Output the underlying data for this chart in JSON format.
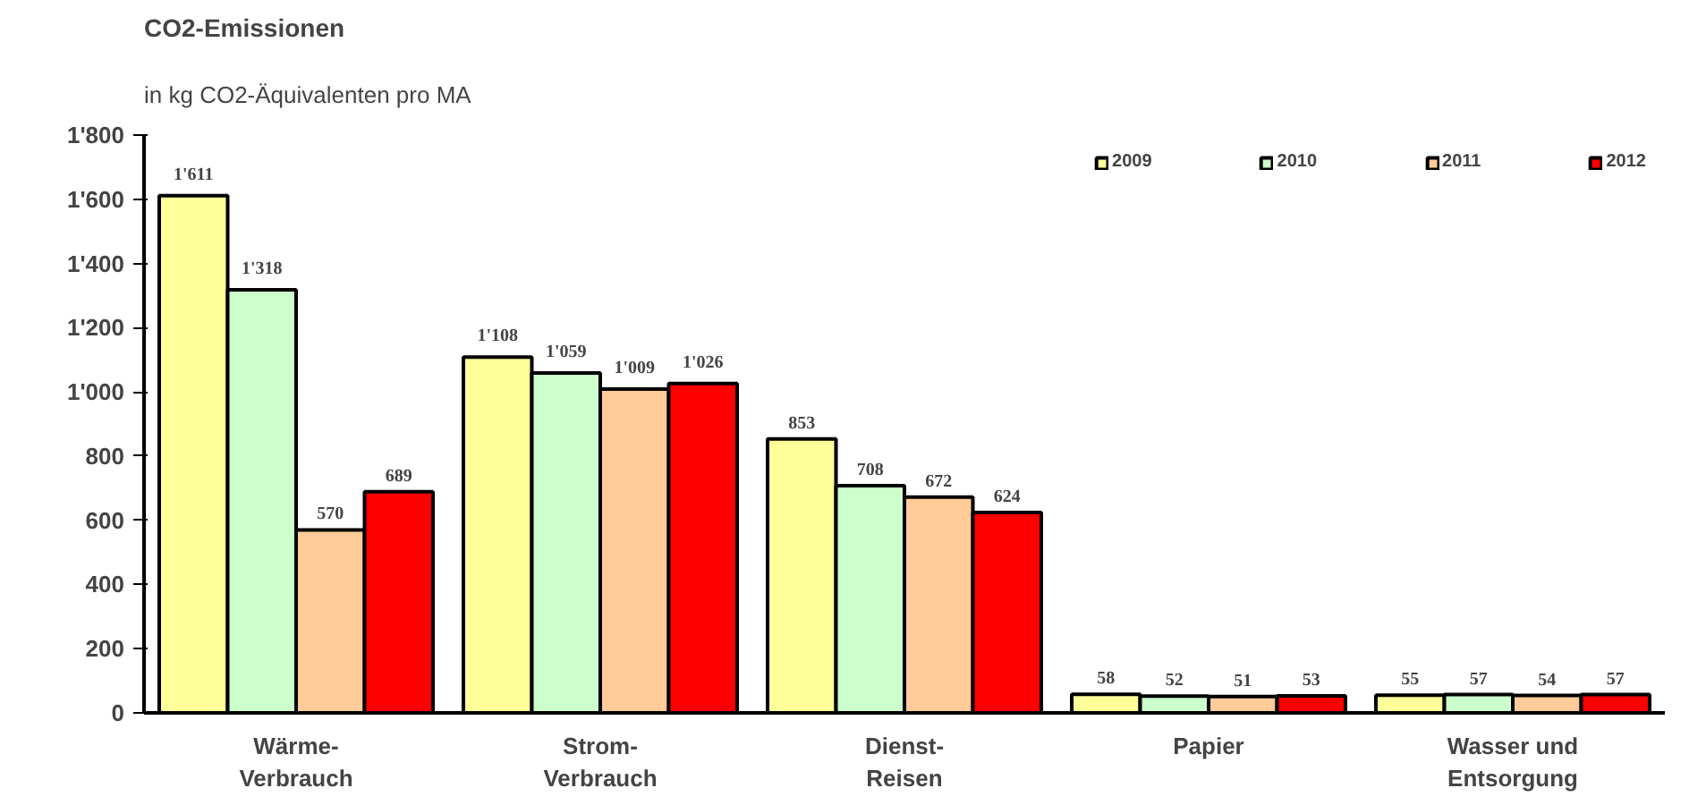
{
  "chart_data": {
    "type": "bar",
    "title": "CO2-Emissionen",
    "subtitle": "in kg CO2-Äquivalenten pro MA",
    "categories": [
      "Wärme-\nVerbrauch",
      "Strom-\nVerbrauch",
      "Dienst-\nReisen",
      "Papier",
      "Wasser und\nEntsorgung"
    ],
    "series": [
      {
        "name": "2009",
        "color": "#ffff99",
        "values": [
          1611,
          1108,
          853,
          58,
          55
        ],
        "value_labels": [
          "1'611",
          "1'108",
          "853",
          "58",
          "55"
        ]
      },
      {
        "name": "2010",
        "color": "#ccffcc",
        "values": [
          1318,
          1059,
          708,
          52,
          57
        ],
        "value_labels": [
          "1'318",
          "1'059",
          "708",
          "52",
          "57"
        ]
      },
      {
        "name": "2011",
        "color": "#ffcc99",
        "values": [
          570,
          1009,
          672,
          51,
          54
        ],
        "value_labels": [
          "570",
          "1'009",
          "672",
          "51",
          "54"
        ]
      },
      {
        "name": "2012",
        "color": "#ff0000",
        "values": [
          689,
          1026,
          624,
          53,
          57
        ],
        "value_labels": [
          "689",
          "1'026",
          "624",
          "53",
          "57"
        ]
      }
    ],
    "ylim": [
      0,
      1800
    ],
    "yticks": [
      0,
      200,
      400,
      600,
      800,
      {
        "value": 1000,
        "label": "1'000"
      },
      {
        "value": 1200,
        "label": "1'200"
      },
      {
        "value": 1400,
        "label": "1'400"
      },
      {
        "value": 1600,
        "label": "1'600"
      },
      {
        "value": 1800,
        "label": "1'800"
      }
    ],
    "grid": false,
    "legend": "top right"
  }
}
